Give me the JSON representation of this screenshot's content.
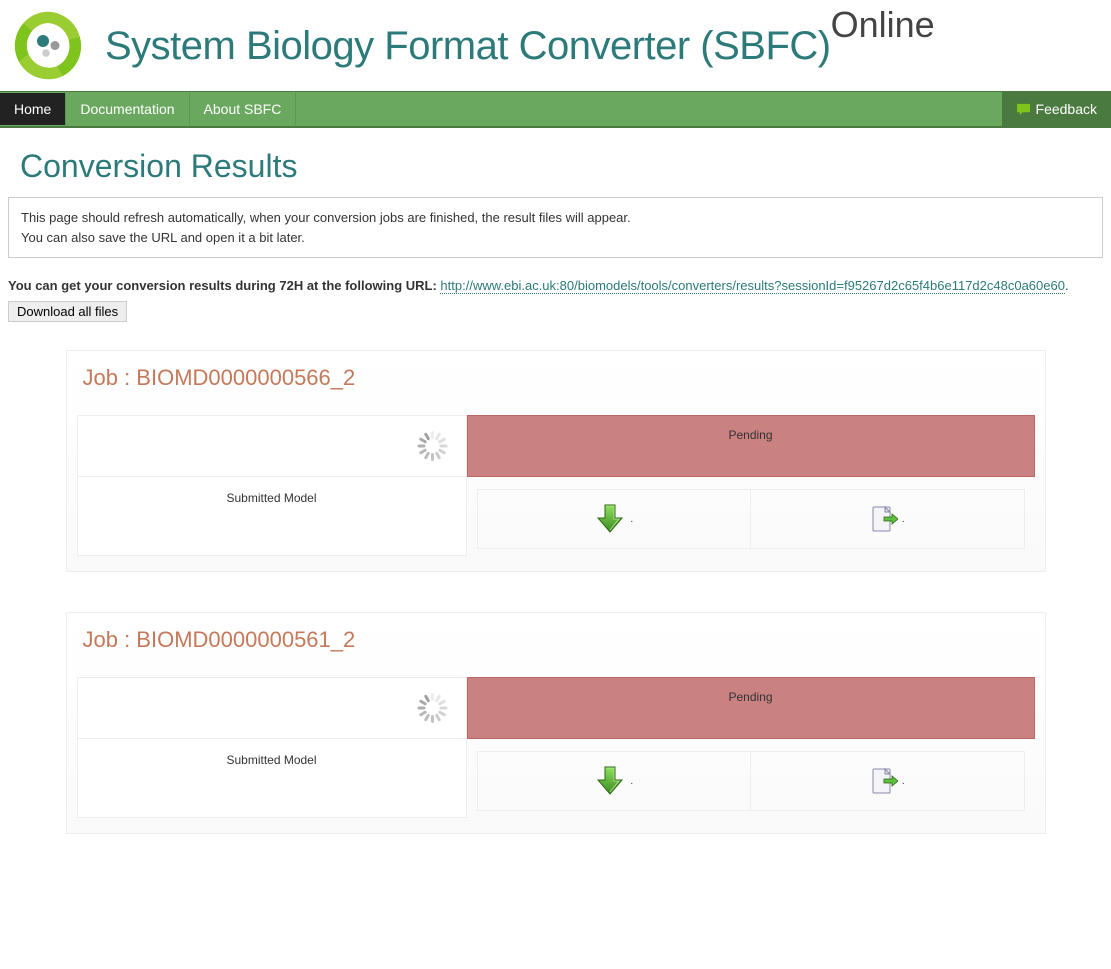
{
  "header": {
    "title_line1": "System Biology Format Converter (SBFC)",
    "title_line2": "Online"
  },
  "nav": {
    "items": [
      {
        "label": "Home",
        "active": true
      },
      {
        "label": "Documentation",
        "active": false
      },
      {
        "label": "About SBFC",
        "active": false
      }
    ],
    "feedback_label": "Feedback"
  },
  "page": {
    "title": "Conversion Results",
    "info_line1": "This page should refresh automatically, when your conversion jobs are finished, the result files will appear.",
    "info_line2": "You can also save the URL and open it a bit later.",
    "url_prefix": "You can get your conversion results during 72H at the following URL: ",
    "url": "http://www.ebi.ac.uk:80/biomodels/tools/converters/results?sessionId=f95267d2c65f4b6e117d2c48c0a60e60",
    "url_suffix": ".",
    "download_all_label": "Download all files"
  },
  "jobs": [
    {
      "title": "Job : BIOMD0000000566_2",
      "status": "Pending",
      "left_label": "Submitted Model"
    },
    {
      "title": "Job : BIOMD0000000561_2",
      "status": "Pending",
      "left_label": "Submitted Model"
    }
  ],
  "colors": {
    "brand_teal": "#2d7a7a",
    "nav_green": "#6ba85f",
    "nav_dark_green": "#4a7a3f",
    "job_title_orange": "#c47a5a",
    "pending_bg": "#c98181",
    "arrow_green": "#5fbf3f",
    "arrow_green_dark": "#3a8a1f"
  }
}
